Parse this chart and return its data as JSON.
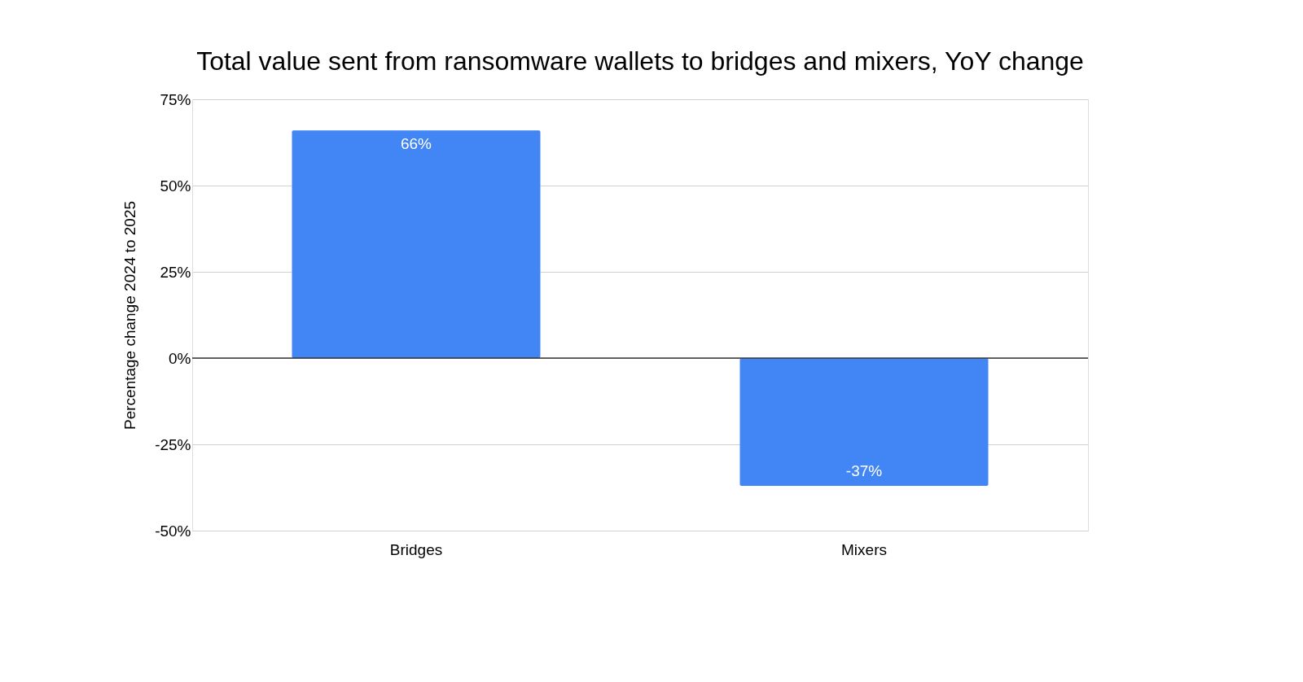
{
  "chart_data": {
    "type": "bar",
    "title": "Total value sent from ransomware wallets to bridges and mixers, YoY change",
    "ylabel": "Percentage change 2024 to 2025",
    "categories": [
      "Bridges",
      "Mixers"
    ],
    "series": [
      {
        "color": "#4285f4",
        "values": [
          66,
          -37
        ],
        "value_labels": [
          "66%",
          "-37%"
        ]
      }
    ],
    "ylim": [
      -50,
      75
    ],
    "yticks": [
      {
        "value": -50,
        "label": "-50%"
      },
      {
        "value": -25,
        "label": "-25%"
      },
      {
        "value": 0,
        "label": "0%"
      },
      {
        "value": 25,
        "label": "25%"
      },
      {
        "value": 50,
        "label": "50%"
      },
      {
        "value": 75,
        "label": "75%"
      }
    ],
    "ref_lines": [
      {
        "axis": "y",
        "value": 0,
        "label": null,
        "color": "#333333"
      }
    ],
    "grid": "y"
  }
}
